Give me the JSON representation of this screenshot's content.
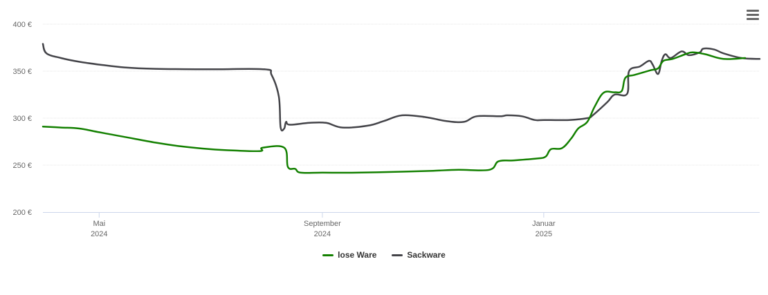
{
  "chart_data": {
    "type": "line",
    "y_tick_labels": [
      "400 €",
      "350 €",
      "300 €",
      "250 €",
      "200 €"
    ],
    "y_ticks": [
      400,
      350,
      300,
      250,
      200
    ],
    "ylim": [
      200,
      400
    ],
    "x_tick_labels": [
      {
        "month": "Mai",
        "year": "2024",
        "date": "2024-05-01"
      },
      {
        "month": "September",
        "year": "2024",
        "date": "2024-09-01"
      },
      {
        "month": "Januar",
        "year": "2025",
        "date": "2025-01-01"
      }
    ],
    "xlim": [
      "2024-03-31",
      "2025-04-30"
    ],
    "grid": true,
    "legend_position": "bottom",
    "series": [
      {
        "name": "lose Ware",
        "color": "#138000",
        "points": [
          [
            "2024-03-31",
            291
          ],
          [
            "2024-04-10",
            290
          ],
          [
            "2024-04-20",
            289
          ],
          [
            "2024-05-01",
            285
          ],
          [
            "2024-05-15",
            280
          ],
          [
            "2024-06-01",
            274
          ],
          [
            "2024-06-15",
            270
          ],
          [
            "2024-07-01",
            267
          ],
          [
            "2024-07-15",
            265.5
          ],
          [
            "2024-07-29",
            265
          ],
          [
            "2024-07-30",
            268.5
          ],
          [
            "2024-08-11",
            268.5
          ],
          [
            "2024-08-13",
            248
          ],
          [
            "2024-08-17",
            246
          ],
          [
            "2024-08-20",
            242
          ],
          [
            "2024-09-01",
            242
          ],
          [
            "2024-09-20",
            242
          ],
          [
            "2024-10-15",
            243
          ],
          [
            "2024-11-01",
            244
          ],
          [
            "2024-11-15",
            245
          ],
          [
            "2024-12-02",
            245
          ],
          [
            "2024-12-07",
            254
          ],
          [
            "2024-12-15",
            255
          ],
          [
            "2024-12-28",
            257
          ],
          [
            "2025-01-02",
            259
          ],
          [
            "2025-01-05",
            267
          ],
          [
            "2025-01-11",
            268
          ],
          [
            "2025-01-16",
            278
          ],
          [
            "2025-01-20",
            289
          ],
          [
            "2025-01-25",
            296
          ],
          [
            "2025-01-29",
            312
          ],
          [
            "2025-02-03",
            327
          ],
          [
            "2025-02-09",
            327.5
          ],
          [
            "2025-02-13",
            329
          ],
          [
            "2025-02-15",
            343
          ],
          [
            "2025-02-20",
            346
          ],
          [
            "2025-03-01",
            351
          ],
          [
            "2025-03-05",
            353
          ],
          [
            "2025-03-08",
            361
          ],
          [
            "2025-03-13",
            363
          ],
          [
            "2025-03-20",
            368
          ],
          [
            "2025-03-24",
            370
          ],
          [
            "2025-03-31",
            368
          ],
          [
            "2025-04-10",
            363
          ],
          [
            "2025-04-22",
            364
          ]
        ]
      },
      {
        "name": "Sackware",
        "color": "#434348",
        "points": [
          [
            "2024-03-31",
            379
          ],
          [
            "2024-04-02",
            369
          ],
          [
            "2024-04-10",
            364
          ],
          [
            "2024-04-20",
            360
          ],
          [
            "2024-05-01",
            357
          ],
          [
            "2024-05-15",
            354
          ],
          [
            "2024-06-01",
            352.5
          ],
          [
            "2024-07-01",
            352
          ],
          [
            "2024-07-31",
            352
          ],
          [
            "2024-08-04",
            346
          ],
          [
            "2024-08-08",
            323
          ],
          [
            "2024-08-09",
            290
          ],
          [
            "2024-08-11",
            289
          ],
          [
            "2024-08-12",
            296
          ],
          [
            "2024-08-14",
            293
          ],
          [
            "2024-08-25",
            295
          ],
          [
            "2024-09-03",
            295
          ],
          [
            "2024-09-12",
            290
          ],
          [
            "2024-09-26",
            292
          ],
          [
            "2024-10-05",
            297
          ],
          [
            "2024-10-15",
            303
          ],
          [
            "2024-10-28",
            301
          ],
          [
            "2024-11-08",
            297
          ],
          [
            "2024-11-18",
            296
          ],
          [
            "2024-11-25",
            302
          ],
          [
            "2024-12-08",
            302
          ],
          [
            "2024-12-12",
            303
          ],
          [
            "2024-12-20",
            302
          ],
          [
            "2024-12-27",
            298
          ],
          [
            "2025-01-01",
            298
          ],
          [
            "2025-01-15",
            298
          ],
          [
            "2025-01-25",
            300
          ],
          [
            "2025-01-28",
            303
          ],
          [
            "2025-02-05",
            317
          ],
          [
            "2025-02-09",
            325
          ],
          [
            "2025-02-16",
            326
          ],
          [
            "2025-02-17",
            350
          ],
          [
            "2025-02-23",
            355
          ],
          [
            "2025-02-28",
            361
          ],
          [
            "2025-03-02",
            357
          ],
          [
            "2025-03-05",
            347
          ],
          [
            "2025-03-07",
            361
          ],
          [
            "2025-03-09",
            368
          ],
          [
            "2025-03-12",
            364
          ],
          [
            "2025-03-18",
            371
          ],
          [
            "2025-03-22",
            367
          ],
          [
            "2025-03-28",
            370
          ],
          [
            "2025-03-30",
            374
          ],
          [
            "2025-04-05",
            373
          ],
          [
            "2025-04-10",
            369
          ],
          [
            "2025-04-20",
            364
          ],
          [
            "2025-04-30",
            363
          ]
        ]
      }
    ]
  },
  "colors": {
    "grid": "#e6e6e6",
    "axis": "#ccd6eb",
    "tick_label": "#666666"
  },
  "menu": {
    "icon": "hamburger-menu-icon"
  }
}
